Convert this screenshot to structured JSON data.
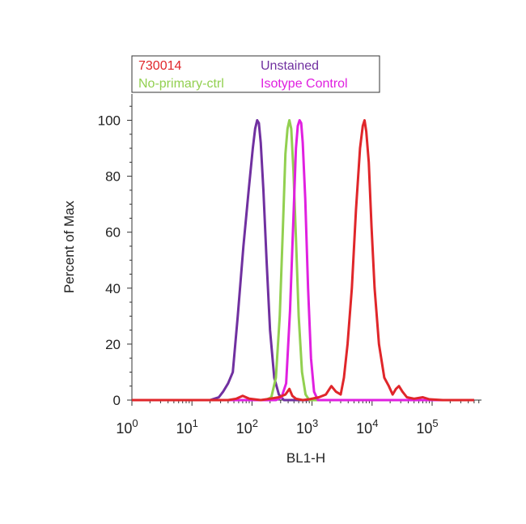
{
  "chart_data": {
    "type": "line",
    "title": "",
    "xlabel": "BL1-H",
    "ylabel": "Percent of Max",
    "x_scale": "log",
    "xlim": [
      1,
      500000
    ],
    "ylim": [
      0,
      110
    ],
    "grid": false,
    "legend_position": "top-left",
    "y_ticks": [
      "0",
      "20",
      "40",
      "60",
      "80",
      "100"
    ],
    "x_ticks": [
      {
        "value": 1,
        "base": "10",
        "exp": "0"
      },
      {
        "value": 10,
        "base": "10",
        "exp": "1"
      },
      {
        "value": 100,
        "base": "10",
        "exp": "2"
      },
      {
        "value": 1000,
        "base": "10",
        "exp": "3"
      },
      {
        "value": 10000,
        "base": "10",
        "exp": "4"
      },
      {
        "value": 100000,
        "base": "10",
        "exp": "5"
      }
    ],
    "series": [
      {
        "name": "730014",
        "color": "#e0262a",
        "points": [
          [
            1,
            0
          ],
          [
            20,
            0
          ],
          [
            40,
            0
          ],
          [
            55,
            0.5
          ],
          [
            70,
            1.5
          ],
          [
            90,
            0.5
          ],
          [
            140,
            0
          ],
          [
            200,
            0.5
          ],
          [
            280,
            1
          ],
          [
            360,
            2
          ],
          [
            420,
            4
          ],
          [
            470,
            1.5
          ],
          [
            540,
            0.5
          ],
          [
            700,
            0
          ],
          [
            900,
            0.3
          ],
          [
            1300,
            1
          ],
          [
            1700,
            2
          ],
          [
            2100,
            5
          ],
          [
            2500,
            3
          ],
          [
            3000,
            2
          ],
          [
            3400,
            8
          ],
          [
            3900,
            20
          ],
          [
            4600,
            40
          ],
          [
            5400,
            68
          ],
          [
            6300,
            90
          ],
          [
            7000,
            98
          ],
          [
            7500,
            100
          ],
          [
            8000,
            96
          ],
          [
            8800,
            85
          ],
          [
            9800,
            62
          ],
          [
            11000,
            40
          ],
          [
            13000,
            20
          ],
          [
            16000,
            8
          ],
          [
            19000,
            5
          ],
          [
            22000,
            2
          ],
          [
            25000,
            4
          ],
          [
            28000,
            5
          ],
          [
            32000,
            3
          ],
          [
            38000,
            1
          ],
          [
            50000,
            0.5
          ],
          [
            70000,
            1
          ],
          [
            90000,
            0.3
          ],
          [
            150000,
            0
          ],
          [
            500000,
            0
          ]
        ]
      },
      {
        "name": "Unstained",
        "color": "#7030a0",
        "points": [
          [
            1,
            0
          ],
          [
            20,
            0
          ],
          [
            28,
            1
          ],
          [
            33,
            3
          ],
          [
            40,
            6
          ],
          [
            48,
            10
          ],
          [
            58,
            30
          ],
          [
            72,
            55
          ],
          [
            88,
            75
          ],
          [
            103,
            90
          ],
          [
            113,
            97
          ],
          [
            122,
            100
          ],
          [
            130,
            99
          ],
          [
            140,
            92
          ],
          [
            155,
            75
          ],
          [
            175,
            50
          ],
          [
            200,
            25
          ],
          [
            235,
            8
          ],
          [
            280,
            2
          ],
          [
            340,
            0
          ],
          [
            500000,
            0
          ]
        ]
      },
      {
        "name": "No-primary-ctrl",
        "color": "#92d050",
        "points": [
          [
            1,
            0
          ],
          [
            170,
            0
          ],
          [
            210,
            1
          ],
          [
            250,
            8
          ],
          [
            290,
            30
          ],
          [
            325,
            60
          ],
          [
            360,
            88
          ],
          [
            390,
            97
          ],
          [
            420,
            100
          ],
          [
            450,
            97
          ],
          [
            490,
            82
          ],
          [
            540,
            58
          ],
          [
            600,
            30
          ],
          [
            680,
            10
          ],
          [
            780,
            2
          ],
          [
            900,
            0
          ],
          [
            500000,
            0
          ]
        ]
      },
      {
        "name": "Isotype Control",
        "color": "#e020e0",
        "points": [
          [
            1,
            0
          ],
          [
            250,
            0
          ],
          [
            310,
            1
          ],
          [
            370,
            6
          ],
          [
            430,
            32
          ],
          [
            490,
            65
          ],
          [
            540,
            90
          ],
          [
            580,
            98
          ],
          [
            620,
            100
          ],
          [
            660,
            99
          ],
          [
            700,
            92
          ],
          [
            770,
            72
          ],
          [
            860,
            40
          ],
          [
            960,
            15
          ],
          [
            1080,
            3
          ],
          [
            1250,
            0
          ],
          [
            500000,
            0
          ]
        ]
      }
    ]
  }
}
